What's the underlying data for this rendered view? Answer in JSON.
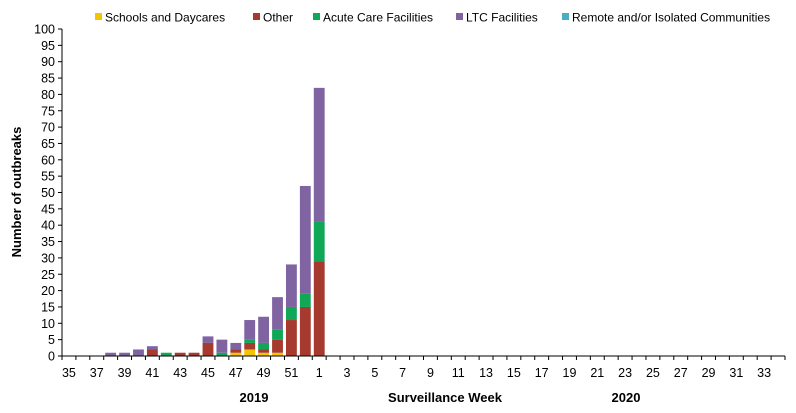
{
  "chart_data": {
    "type": "bar",
    "stacked": true,
    "title": "",
    "xlabel": "Surveillance Week",
    "ylabel": "Number of outbreaks",
    "year_labels": [
      "2019",
      "2020"
    ],
    "ylim": [
      0,
      100
    ],
    "ytick_step": 5,
    "legend_position": "top",
    "categories": [
      "35",
      "36",
      "37",
      "38",
      "39",
      "40",
      "41",
      "42",
      "43",
      "44",
      "45",
      "46",
      "47",
      "48",
      "49",
      "50",
      "51",
      "52",
      "1",
      "2",
      "3",
      "4",
      "5",
      "6",
      "7",
      "8",
      "9",
      "10",
      "11",
      "12",
      "13",
      "14",
      "15",
      "16",
      "17",
      "18",
      "19",
      "20",
      "21",
      "22",
      "23",
      "24",
      "25",
      "26",
      "27",
      "28",
      "29",
      "30",
      "31",
      "32",
      "33",
      "34"
    ],
    "xtick_labels": [
      "35",
      "37",
      "39",
      "41",
      "43",
      "45",
      "47",
      "49",
      "51",
      "1",
      "3",
      "5",
      "7",
      "9",
      "11",
      "13",
      "15",
      "17",
      "19",
      "21",
      "23",
      "25",
      "27",
      "29",
      "31",
      "33"
    ],
    "series": [
      {
        "name": "Schools and Daycares",
        "color": "#f5c400",
        "values": [
          0,
          0,
          0,
          0,
          0,
          0,
          0,
          0,
          0,
          0,
          0,
          0,
          1,
          2,
          1,
          1,
          0,
          0,
          0,
          0,
          0,
          0,
          0,
          0,
          0,
          0,
          0,
          0,
          0,
          0,
          0,
          0,
          0,
          0,
          0,
          0,
          0,
          0,
          0,
          0,
          0,
          0,
          0,
          0,
          0,
          0,
          0,
          0,
          0,
          0,
          0,
          0
        ]
      },
      {
        "name": "Other",
        "color": "#a63a2e",
        "values": [
          0,
          0,
          0,
          0,
          0,
          0,
          2,
          0,
          1,
          1,
          4,
          0,
          1,
          2,
          1,
          4,
          11,
          15,
          29,
          0,
          0,
          0,
          0,
          0,
          0,
          0,
          0,
          0,
          0,
          0,
          0,
          0,
          0,
          0,
          0,
          0,
          0,
          0,
          0,
          0,
          0,
          0,
          0,
          0,
          0,
          0,
          0,
          0,
          0,
          0,
          0,
          0
        ]
      },
      {
        "name": "Acute Care Facilities",
        "color": "#10a857",
        "values": [
          0,
          0,
          0,
          0,
          0,
          0,
          0,
          1,
          0,
          0,
          0,
          1,
          0,
          1,
          2,
          3,
          4,
          4,
          12,
          0,
          0,
          0,
          0,
          0,
          0,
          0,
          0,
          0,
          0,
          0,
          0,
          0,
          0,
          0,
          0,
          0,
          0,
          0,
          0,
          0,
          0,
          0,
          0,
          0,
          0,
          0,
          0,
          0,
          0,
          0,
          0,
          0
        ]
      },
      {
        "name": "LTC Facilities",
        "color": "#8064a2",
        "values": [
          0,
          0,
          0,
          1,
          1,
          2,
          1,
          0,
          0,
          0,
          2,
          4,
          2,
          6,
          8,
          10,
          13,
          33,
          41,
          0,
          0,
          0,
          0,
          0,
          0,
          0,
          0,
          0,
          0,
          0,
          0,
          0,
          0,
          0,
          0,
          0,
          0,
          0,
          0,
          0,
          0,
          0,
          0,
          0,
          0,
          0,
          0,
          0,
          0,
          0,
          0,
          0
        ]
      },
      {
        "name": "Remote and/or Isolated Communities",
        "color": "#4bacc6",
        "values": [
          0,
          0,
          0,
          0,
          0,
          0,
          0,
          0,
          0,
          0,
          0,
          0,
          0,
          0,
          0,
          0,
          0,
          0,
          0,
          0,
          0,
          0,
          0,
          0,
          0,
          0,
          0,
          0,
          0,
          0,
          0,
          0,
          0,
          0,
          0,
          0,
          0,
          0,
          0,
          0,
          0,
          0,
          0,
          0,
          0,
          0,
          0,
          0,
          0,
          0,
          0,
          0
        ]
      }
    ]
  }
}
